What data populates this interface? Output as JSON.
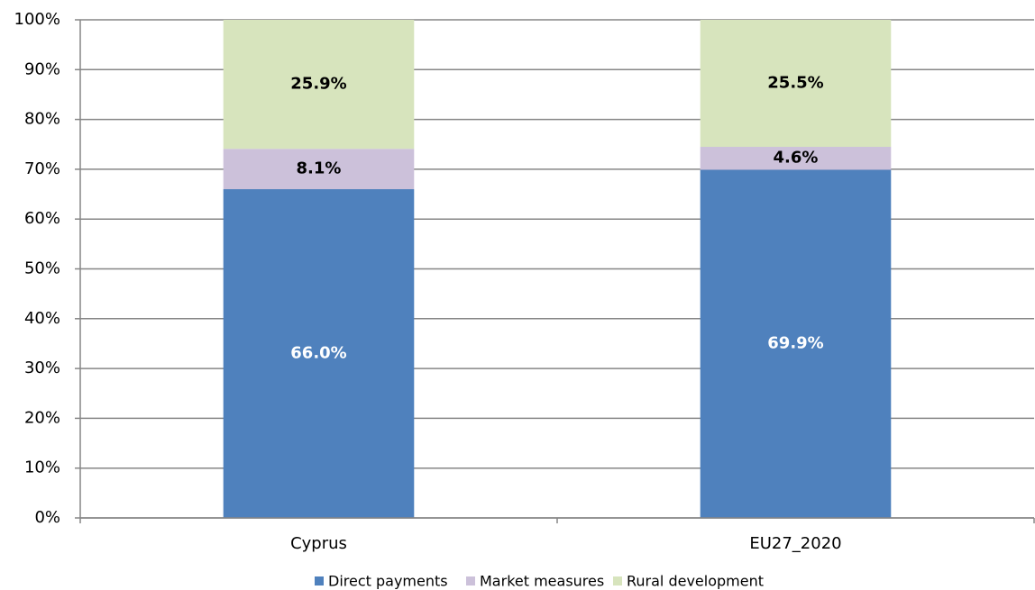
{
  "chart_data": {
    "type": "stacked_bar",
    "categories": [
      "Cyprus",
      "EU27_2020"
    ],
    "series": [
      {
        "name": "Direct payments",
        "color": "#4f81bd",
        "label_color": "#ffffff",
        "values": [
          66.0,
          69.9
        ],
        "value_labels": [
          "66.0%",
          "69.9%"
        ]
      },
      {
        "name": "Market measures",
        "color": "#ccc1da",
        "label_color": "#000000",
        "values": [
          8.1,
          4.6
        ],
        "value_labels": [
          "8.1%",
          "4.6%"
        ]
      },
      {
        "name": "Rural development",
        "color": "#d7e4bd",
        "label_color": "#000000",
        "values": [
          25.9,
          25.5
        ],
        "value_labels": [
          "25.9%",
          "25.5%"
        ]
      }
    ],
    "ylim": [
      0,
      100
    ],
    "yticks": [
      {
        "value": 0,
        "label": "0%"
      },
      {
        "value": 10,
        "label": "10%"
      },
      {
        "value": 20,
        "label": "20%"
      },
      {
        "value": 30,
        "label": "30%"
      },
      {
        "value": 40,
        "label": "40%"
      },
      {
        "value": 50,
        "label": "50%"
      },
      {
        "value": 60,
        "label": "60%"
      },
      {
        "value": 70,
        "label": "70%"
      },
      {
        "value": 80,
        "label": "80%"
      },
      {
        "value": 90,
        "label": "90%"
      },
      {
        "value": 100,
        "label": "100%"
      }
    ],
    "grid": true,
    "legend": "bottom"
  }
}
